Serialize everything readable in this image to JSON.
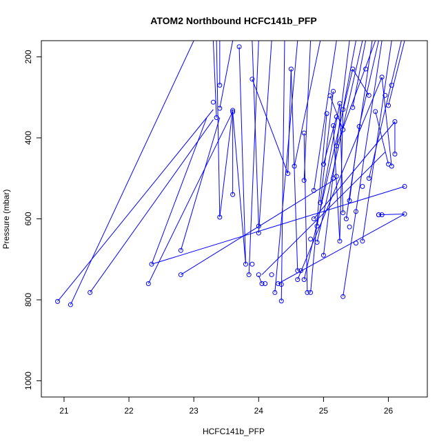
{
  "chart_data": {
    "type": "scatter",
    "title": "ATOM2 Northbound HCFC141b_PFP",
    "xlabel": "HCFC141b_PFP",
    "ylabel": "Pressure (mbar)",
    "xlim": [
      20.65,
      26.6
    ],
    "ylim": [
      1040,
      160
    ],
    "y_reversed": true,
    "x_ticks": [
      21,
      22,
      23,
      24,
      25,
      26
    ],
    "y_ticks": [
      200,
      400,
      600,
      800,
      1000
    ],
    "grid": false,
    "color": "#0000ff",
    "points": [
      [
        20.9,
        804
      ],
      [
        21.1,
        812
      ],
      [
        21.4,
        782
      ],
      [
        22.3,
        760
      ],
      [
        22.35,
        712
      ],
      [
        22.8,
        678
      ],
      [
        22.8,
        738
      ],
      [
        23.3,
        312
      ],
      [
        23.35,
        350
      ],
      [
        23.4,
        270
      ],
      [
        23.4,
        327
      ],
      [
        23.4,
        596
      ],
      [
        23.6,
        332
      ],
      [
        23.6,
        336
      ],
      [
        23.6,
        540
      ],
      [
        23.7,
        175
      ],
      [
        23.8,
        712
      ],
      [
        23.85,
        738
      ],
      [
        23.9,
        255
      ],
      [
        23.9,
        712
      ],
      [
        24.0,
        618
      ],
      [
        24.0,
        635
      ],
      [
        24.0,
        738
      ],
      [
        24.05,
        760
      ],
      [
        24.1,
        760
      ],
      [
        24.2,
        738
      ],
      [
        24.25,
        782
      ],
      [
        24.3,
        760
      ],
      [
        24.35,
        762
      ],
      [
        24.35,
        803
      ],
      [
        24.45,
        488
      ],
      [
        24.5,
        230
      ],
      [
        24.55,
        470
      ],
      [
        24.6,
        728
      ],
      [
        24.6,
        750
      ],
      [
        24.65,
        728
      ],
      [
        24.7,
        388
      ],
      [
        24.7,
        505
      ],
      [
        24.7,
        750
      ],
      [
        24.75,
        782
      ],
      [
        24.8,
        782
      ],
      [
        24.85,
        530
      ],
      [
        24.85,
        600
      ],
      [
        24.9,
        618
      ],
      [
        24.9,
        658
      ],
      [
        24.95,
        560
      ],
      [
        25.0,
        690
      ],
      [
        25.05,
        340
      ],
      [
        25.1,
        296
      ],
      [
        25.15,
        285
      ],
      [
        25.15,
        370
      ],
      [
        25.2,
        348
      ],
      [
        25.2,
        420
      ],
      [
        25.2,
        495
      ],
      [
        25.25,
        315
      ],
      [
        25.25,
        655
      ],
      [
        25.3,
        330
      ],
      [
        25.3,
        380
      ],
      [
        25.3,
        585
      ],
      [
        25.35,
        600
      ],
      [
        25.4,
        555
      ],
      [
        25.45,
        230
      ],
      [
        25.45,
        325
      ],
      [
        25.5,
        582
      ],
      [
        25.5,
        660
      ],
      [
        25.55,
        372
      ],
      [
        25.6,
        655
      ],
      [
        25.65,
        230
      ],
      [
        25.7,
        295
      ],
      [
        25.7,
        500
      ],
      [
        25.8,
        335
      ],
      [
        25.85,
        590
      ],
      [
        25.9,
        250
      ],
      [
        25.9,
        590
      ],
      [
        25.95,
        295
      ],
      [
        26.0,
        320
      ],
      [
        26.0,
        465
      ],
      [
        26.05,
        270
      ],
      [
        26.05,
        470
      ],
      [
        26.1,
        360
      ],
      [
        26.1,
        440
      ],
      [
        26.25,
        520
      ],
      [
        26.25,
        588
      ],
      [
        25.0,
        465
      ],
      [
        24.8,
        650
      ],
      [
        25.3,
        792
      ],
      [
        25.15,
        500
      ],
      [
        25.4,
        620
      ],
      [
        25.6,
        520
      ],
      [
        25.85,
        590
      ]
    ],
    "segments": [
      [
        20.9,
        804,
        23.3,
        330
      ],
      [
        21.1,
        812,
        23.0,
        160
      ],
      [
        21.4,
        782,
        23.3,
        355
      ],
      [
        22.35,
        712,
        23.2,
        350
      ],
      [
        22.8,
        678,
        23.4,
        350
      ],
      [
        22.8,
        738,
        25.2,
        500
      ],
      [
        22.3,
        760,
        23.6,
        335
      ],
      [
        23.4,
        596,
        23.6,
        330
      ],
      [
        23.35,
        350,
        23.3,
        160
      ],
      [
        23.4,
        270,
        23.4,
        160
      ],
      [
        23.4,
        327,
        23.6,
        160
      ],
      [
        23.6,
        540,
        23.6,
        340
      ],
      [
        23.7,
        175,
        23.8,
        712
      ],
      [
        23.85,
        738,
        24.0,
        160
      ],
      [
        23.9,
        255,
        24.45,
        488
      ],
      [
        24.0,
        618,
        23.9,
        160
      ],
      [
        24.0,
        635,
        24.2,
        160
      ],
      [
        24.05,
        760,
        24.0,
        740
      ],
      [
        24.25,
        782,
        24.6,
        160
      ],
      [
        24.35,
        803,
        24.4,
        160
      ],
      [
        24.5,
        230,
        24.6,
        728
      ],
      [
        24.55,
        470,
        24.95,
        160
      ],
      [
        24.7,
        388,
        24.75,
        782
      ],
      [
        24.7,
        505,
        24.8,
        160
      ],
      [
        24.8,
        782,
        25.05,
        340
      ],
      [
        24.85,
        530,
        25.2,
        160
      ],
      [
        24.9,
        658,
        25.6,
        160
      ],
      [
        24.95,
        560,
        25.15,
        285
      ],
      [
        25.0,
        690,
        25.4,
        160
      ],
      [
        25.1,
        296,
        25.3,
        380
      ],
      [
        25.15,
        370,
        25.25,
        655
      ],
      [
        25.2,
        420,
        25.8,
        160
      ],
      [
        25.25,
        315,
        25.3,
        585
      ],
      [
        25.3,
        330,
        25.5,
        160
      ],
      [
        25.35,
        600,
        25.75,
        160
      ],
      [
        25.45,
        325,
        25.65,
        160
      ],
      [
        25.5,
        582,
        25.9,
        160
      ],
      [
        25.55,
        372,
        25.85,
        160
      ],
      [
        25.6,
        655,
        26.05,
        160
      ],
      [
        25.7,
        500,
        26.2,
        160
      ],
      [
        25.8,
        335,
        26.0,
        465
      ],
      [
        25.9,
        250,
        26.05,
        470
      ],
      [
        26.0,
        320,
        26.25,
        160
      ],
      [
        26.1,
        360,
        26.1,
        440
      ],
      [
        24.05,
        738,
        25.95,
        435
      ],
      [
        22.35,
        712,
        26.25,
        520
      ],
      [
        24.3,
        760,
        26.25,
        588
      ],
      [
        25.3,
        792,
        25.5,
        582
      ],
      [
        24.85,
        600,
        26.1,
        360
      ],
      [
        25.45,
        230,
        25.7,
        295
      ],
      [
        24.6,
        750,
        25.9,
        250
      ],
      [
        24.7,
        750,
        25.45,
        230
      ],
      [
        25.25,
        655,
        25.3,
        330
      ],
      [
        25.4,
        555,
        25.55,
        372
      ],
      [
        24.45,
        488,
        24.5,
        230
      ],
      [
        23.6,
        336,
        23.8,
        712
      ],
      [
        23.4,
        596,
        23.35,
        160
      ],
      [
        25.85,
        590,
        26.25,
        588
      ],
      [
        24.9,
        618,
        25.25,
        315
      ],
      [
        25.0,
        465,
        25.2,
        348
      ]
    ]
  }
}
